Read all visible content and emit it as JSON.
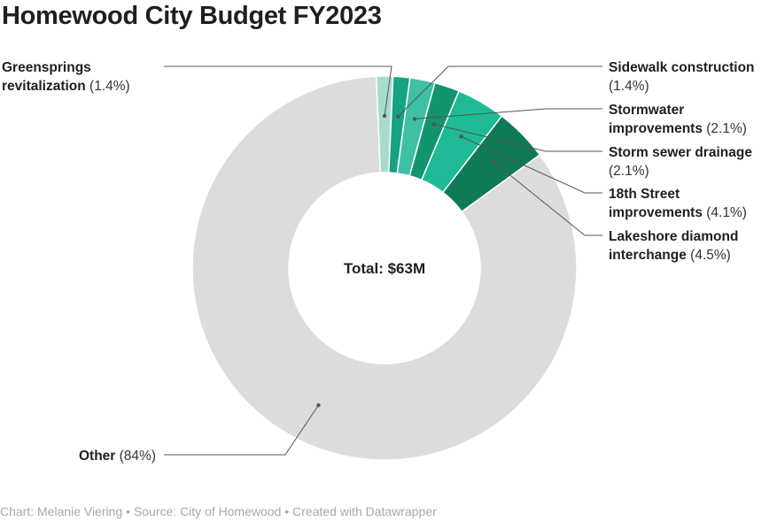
{
  "title": "Homewood City Budget FY2023",
  "footer": "Chart: Melanie Viering • Source: City of Homewood • Created with Datawrapper",
  "chart_data": {
    "type": "pie",
    "donut": true,
    "title": "Homewood City Budget FY2023",
    "center_label": "Total: $63M",
    "slices": [
      {
        "label": "Greenspringsrevitalization",
        "label_lines": [
          "Greensprings",
          "revitalization"
        ],
        "pct_text": "(1.4%)",
        "value": 1.4,
        "color": "#a7dccd"
      },
      {
        "label": "Sidewalk construction",
        "label_lines": [
          "Sidewalk construction"
        ],
        "pct_text": "(1.4%)",
        "value": 1.4,
        "color": "#14a383"
      },
      {
        "label": "Stormwater improvements",
        "label_lines": [
          "Stormwater",
          "improvements"
        ],
        "pct_text": "(2.1%)",
        "value": 2.1,
        "color": "#3fc0a4"
      },
      {
        "label": "Storm sewer drainage",
        "label_lines": [
          "Storm sewer drainage"
        ],
        "pct_text": "(2.1%)",
        "value": 2.1,
        "color": "#12946f"
      },
      {
        "label": "18th Street improvements",
        "label_lines": [
          "18th Street",
          "improvements"
        ],
        "pct_text": "(4.1%)",
        "value": 4.1,
        "color": "#1dba95"
      },
      {
        "label": "Lakeshore diamond interchange",
        "label_lines": [
          "Lakeshore diamond",
          "interchange"
        ],
        "pct_text": "(4.5%)",
        "value": 4.5,
        "color": "#107a57"
      },
      {
        "label": "Other",
        "label_lines": [
          "Other"
        ],
        "pct_text": "(84%)",
        "value": 84,
        "color": "#dcdcdc"
      }
    ]
  }
}
